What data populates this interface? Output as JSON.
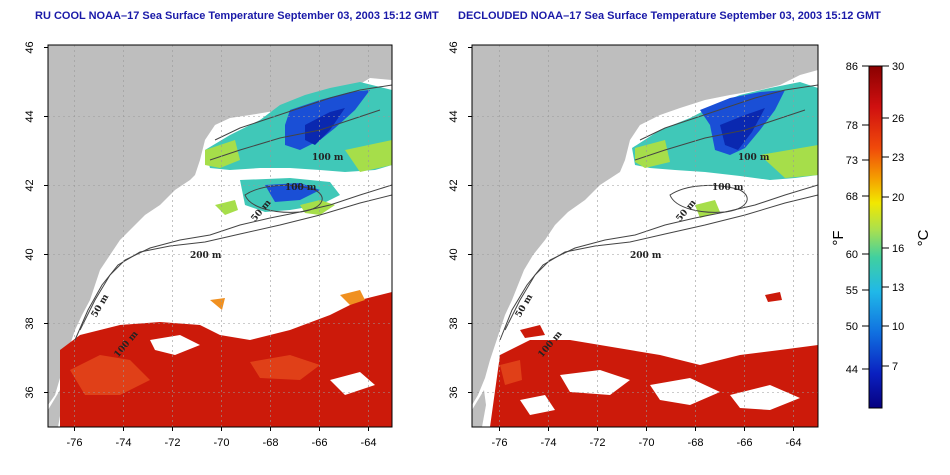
{
  "panels": [
    {
      "title": "RU COOL NOAA–17 Sea Surface Temperature September 03, 2003 15:12 GMT",
      "isobaths": [
        "100 m",
        "100 m",
        "50 m",
        "200 m",
        "50 m",
        "100 m"
      ]
    },
    {
      "title": "DECLOUDED NOAA–17 Sea Surface Temperature September 03, 2003 15:12 GMT",
      "isobaths": [
        "100 m",
        "100 m",
        "50 m",
        "200 m",
        "50 m",
        "100 m"
      ]
    }
  ],
  "axes": {
    "x_ticks": [
      "-76",
      "-74",
      "-72",
      "-70",
      "-68",
      "-66",
      "-64"
    ],
    "y_ticks": [
      "36",
      "38",
      "40",
      "42",
      "44",
      "46"
    ]
  },
  "colorbar": {
    "fahrenheit_label": "°F",
    "celsius_label": "°C",
    "fahrenheit_ticks": [
      "86",
      "78",
      "73",
      "68",
      "60",
      "55",
      "50",
      "44"
    ],
    "celsius_ticks": [
      "30",
      "26",
      "23",
      "20",
      "16",
      "13",
      "10",
      "7"
    ]
  },
  "colors": {
    "land": "#bebebe",
    "title": "#1a1aa8",
    "warm": "#cc1a0a",
    "cool": "#1a4fd6",
    "mid": "#33c9c0"
  }
}
